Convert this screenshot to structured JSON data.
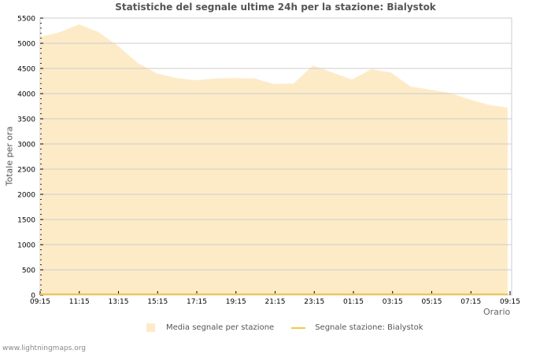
{
  "title": "Statistiche del segnale ultime 24h per la stazione: Bialystok",
  "footer": "www.lightningmaps.org",
  "colors": {
    "area_fill": "#fdebc8",
    "station_line": "#f5c842",
    "grid": "#cccccc",
    "axis": "#cccccc"
  },
  "chart_data": {
    "type": "area",
    "title": "Statistiche del segnale ultime 24h per la stazione: Bialystok",
    "xlabel": "Orario",
    "ylabel": "Totale per ora",
    "ylim": [
      0,
      5500
    ],
    "grid": true,
    "legend_position": "bottom",
    "y_ticks": [
      0,
      500,
      1000,
      1500,
      2000,
      2500,
      3000,
      3500,
      4000,
      4500,
      5000,
      5500
    ],
    "x_tick_labels": [
      "09:15",
      "11:15",
      "13:15",
      "15:15",
      "17:15",
      "19:15",
      "21:15",
      "23:15",
      "01:15",
      "03:15",
      "05:15",
      "07:15",
      "09:15"
    ],
    "x": [
      "09:15",
      "10:15",
      "11:15",
      "12:15",
      "13:15",
      "14:15",
      "15:15",
      "16:15",
      "17:15",
      "18:15",
      "19:15",
      "20:15",
      "21:15",
      "22:15",
      "23:15",
      "00:15",
      "01:15",
      "02:15",
      "03:15",
      "04:15",
      "05:15",
      "06:15",
      "07:15",
      "08:15",
      "09:15"
    ],
    "series": [
      {
        "name": "Media segnale per stazione",
        "type": "area",
        "values": [
          5125,
          5220,
          5375,
          5220,
          4950,
          4610,
          4400,
          4310,
          4265,
          4300,
          4310,
          4300,
          4190,
          4200,
          4560,
          4420,
          4280,
          4485,
          4420,
          4140,
          4080,
          4015,
          3890,
          3780,
          3720
        ]
      },
      {
        "name": "Segnale stazione: Bialystok",
        "type": "line",
        "values": [
          0,
          0,
          0,
          0,
          0,
          0,
          0,
          0,
          0,
          0,
          0,
          0,
          0,
          0,
          0,
          0,
          0,
          0,
          0,
          0,
          0,
          0,
          0,
          0,
          0
        ]
      }
    ]
  },
  "legend": [
    {
      "label": "Media segnale per stazione"
    },
    {
      "label": "Segnale stazione: Bialystok"
    }
  ]
}
